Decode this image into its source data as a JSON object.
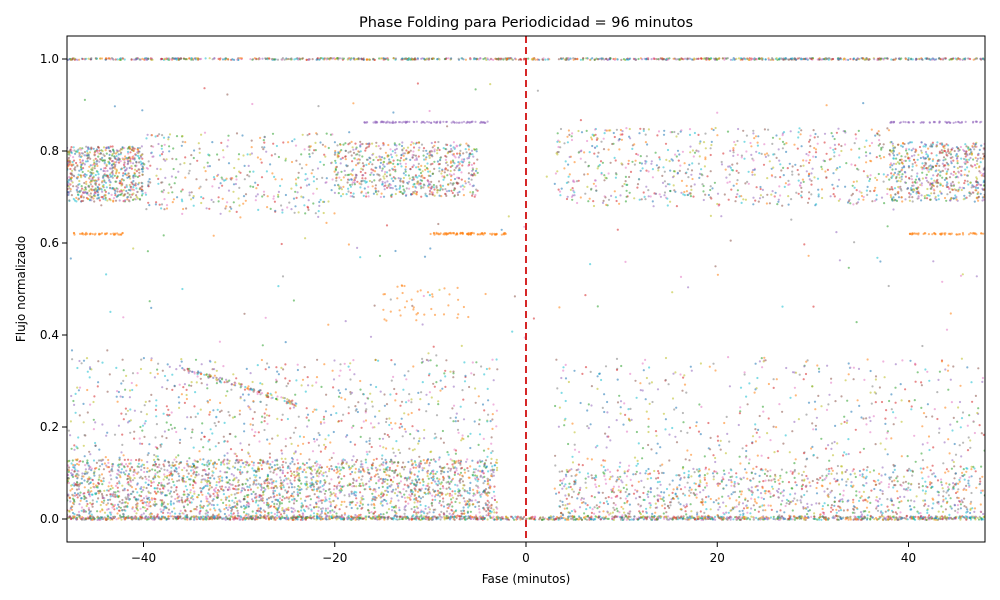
{
  "chart_data": {
    "type": "scatter",
    "title": "Phase Folding para Periodicidad = 96 minutos",
    "xlabel": "Fase (minutos)",
    "ylabel": "Flujo normalizado",
    "xlim": [
      -48,
      48
    ],
    "ylim": [
      -0.05,
      1.05
    ],
    "x_ticks": [
      -40,
      -20,
      0,
      20,
      40
    ],
    "y_ticks": [
      0.0,
      0.2,
      0.4,
      0.6,
      0.8,
      1.0
    ],
    "grid": false,
    "legend": "none",
    "reference_line": {
      "x": 0,
      "color": "#d62728",
      "style": "dashed"
    },
    "palette": [
      "#1f77b4",
      "#ff7f0e",
      "#2ca02c",
      "#d62728",
      "#9467bd",
      "#8c564b",
      "#e377c2",
      "#7f7f7f",
      "#bcbd22",
      "#17becf"
    ],
    "point_opacity": 0.55,
    "clusters": [
      {
        "x": [
          -48,
          48
        ],
        "y": [
          0.998,
          1.002
        ],
        "n": 900,
        "shape": "uniform"
      },
      {
        "x": [
          -48,
          48
        ],
        "y": [
          -0.002,
          0.006
        ],
        "n": 1400,
        "shape": "uniform"
      },
      {
        "x": [
          -48,
          -3
        ],
        "y": [
          0.0,
          0.13
        ],
        "n": 2600,
        "shape": "uniform"
      },
      {
        "x": [
          3,
          48
        ],
        "y": [
          0.0,
          0.11
        ],
        "n": 1100,
        "shape": "uniform"
      },
      {
        "x": [
          -48,
          -40
        ],
        "y": [
          0.69,
          0.81
        ],
        "n": 700,
        "shape": "uniform"
      },
      {
        "x": [
          -20,
          -5
        ],
        "y": [
          0.7,
          0.82
        ],
        "n": 700,
        "shape": "uniform"
      },
      {
        "x": [
          38,
          48
        ],
        "y": [
          0.69,
          0.82
        ],
        "n": 600,
        "shape": "uniform"
      },
      {
        "x": [
          -40,
          -20
        ],
        "y": [
          0.66,
          0.84
        ],
        "n": 350,
        "shape": "uniform"
      },
      {
        "x": [
          3,
          38
        ],
        "y": [
          0.68,
          0.85
        ],
        "n": 700,
        "shape": "uniform"
      },
      {
        "x": [
          -48,
          -3
        ],
        "y": [
          0.13,
          0.35
        ],
        "n": 700,
        "shape": "uniform"
      },
      {
        "x": [
          3,
          48
        ],
        "y": [
          0.11,
          0.35
        ],
        "n": 500,
        "shape": "uniform"
      },
      {
        "x": [
          -48,
          48
        ],
        "y": [
          0.35,
          0.95
        ],
        "n": 160,
        "shape": "uniform"
      },
      {
        "x": [
          -36,
          -24
        ],
        "y": [
          0.25,
          0.33
        ],
        "n": 120,
        "shape": "arc"
      },
      {
        "x": [
          -17,
          -4
        ],
        "y": [
          0.861,
          0.864
        ],
        "n": 90,
        "shape": "uniform",
        "color": "#9467bd"
      },
      {
        "x": [
          -10,
          -2
        ],
        "y": [
          0.618,
          0.622
        ],
        "n": 80,
        "shape": "uniform",
        "color": "#ff7f0e"
      },
      {
        "x": [
          -48,
          -42
        ],
        "y": [
          0.618,
          0.622
        ],
        "n": 40,
        "shape": "uniform",
        "color": "#ff7f0e"
      },
      {
        "x": [
          40,
          48
        ],
        "y": [
          0.618,
          0.622
        ],
        "n": 50,
        "shape": "uniform",
        "color": "#ff7f0e"
      },
      {
        "x": [
          38,
          48
        ],
        "y": [
          0.861,
          0.864
        ],
        "n": 50,
        "shape": "uniform",
        "color": "#9467bd"
      },
      {
        "x": [
          -15,
          -6
        ],
        "y": [
          0.43,
          0.51
        ],
        "n": 40,
        "shape": "uniform",
        "color": "#ff7f0e"
      }
    ]
  }
}
